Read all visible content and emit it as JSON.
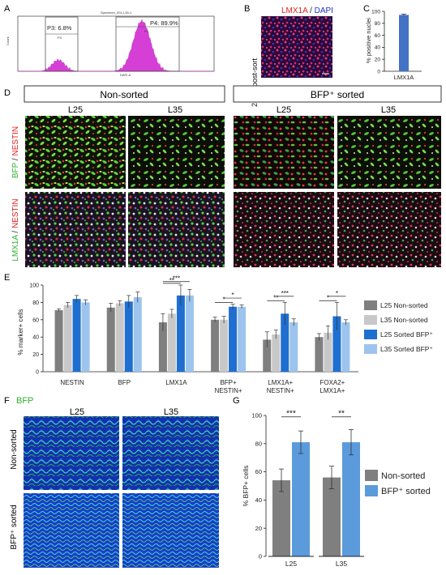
{
  "panels": {
    "A": "A",
    "B": "B",
    "C": "C",
    "D": "D",
    "E": "E",
    "F": "F",
    "G": "G"
  },
  "panel_a": {
    "title": "Specimen_001-L35-1",
    "gate_p3": "P3: 6.8%",
    "gate_p3_short": "P3",
    "gate_p4": "P4: 89.9%",
    "gate_p4_short": "P4",
    "xlabel": "DAPI-A",
    "ylabel": "Count",
    "hist_color": "#d63fd6"
  },
  "panel_b": {
    "title_a": "LMX1A",
    "title_sep": " / ",
    "title_b": "DAPI",
    "side_label": "24hrs post-sort"
  },
  "panel_d": {
    "group_left": "Non-sorted",
    "group_right": "BFP⁺ sorted",
    "col_labels": [
      "L25",
      "L35",
      "L25",
      "L35"
    ],
    "row1_a": "BFP",
    "row1_sep": " / ",
    "row1_b": "NESTIN",
    "row2_a": "LMX1A",
    "row2_sep": " / ",
    "row2_b": "NESTIN"
  },
  "panel_f": {
    "title": "BFP",
    "col_labels": [
      "L25",
      "L35"
    ],
    "row_labels": [
      "Non-sorted",
      "BFP⁺ sorted"
    ]
  },
  "colors": {
    "L25_non": "#7f7f7f",
    "L35_non": "#c8c8c8",
    "L25_sorted": "#1f6fd0",
    "L35_sorted": "#9cc4ee",
    "g_non": "#7f7f7f",
    "g_sorted": "#5b9bdc"
  },
  "chart_data": [
    {
      "id": "C",
      "type": "bar",
      "categories": [
        "LMX1A"
      ],
      "values": [
        94
      ],
      "errors": [
        1.5
      ],
      "ylabel": "% positive nuclei",
      "ylim": [
        0,
        100
      ],
      "yticks": [
        0,
        20,
        40,
        60,
        80,
        100
      ],
      "color": "#4472c4"
    },
    {
      "id": "E",
      "type": "bar",
      "categories": [
        "NESTIN",
        "BFP",
        "LMX1A",
        "BFP+ NESTIN+",
        "LMX1A+ NESTIN+",
        "FOXA2+ LMX1A+"
      ],
      "category_lines": [
        [
          "NESTIN"
        ],
        [
          "BFP"
        ],
        [
          "LMX1A"
        ],
        [
          "BFP+",
          "NESTIN+"
        ],
        [
          "LMX1A+",
          "NESTIN+"
        ],
        [
          "FOXA2+",
          "LMX1A+"
        ]
      ],
      "ylabel": "% marker+ cells",
      "ylim": [
        0,
        100
      ],
      "yticks": [
        0,
        20,
        40,
        60,
        80,
        100
      ],
      "legend_position": "right",
      "series": [
        {
          "name": "L25 Non-sorted",
          "values": [
            71,
            74,
            57,
            60,
            37,
            40
          ],
          "errors": [
            1.5,
            5,
            10,
            3,
            9,
            4
          ]
        },
        {
          "name": "L35 Non-sorted",
          "values": [
            77,
            79,
            67,
            60,
            43,
            45
          ],
          "errors": [
            3,
            3,
            5,
            4,
            5,
            8
          ]
        },
        {
          "name": "L25 Sorted BFP⁺",
          "values": [
            84,
            81,
            88,
            75,
            67,
            64
          ],
          "errors": [
            4,
            7,
            12,
            3,
            13,
            16
          ]
        },
        {
          "name": "L35 Sorted BFP⁺",
          "values": [
            80,
            86,
            88,
            75,
            57,
            57
          ],
          "errors": [
            3,
            6,
            7,
            2,
            4,
            3
          ]
        }
      ],
      "significance": [
        {
          "category": 2,
          "from": 0,
          "to": 2,
          "label": "**"
        },
        {
          "category": 2,
          "from": 0,
          "to": 3,
          "label": "***"
        },
        {
          "category": 3,
          "from": 0,
          "to": 2,
          "label": "*"
        },
        {
          "category": 3,
          "from": 1,
          "to": 3,
          "label": "*"
        },
        {
          "category": 4,
          "from": 0,
          "to": 2,
          "label": "**"
        },
        {
          "category": 4,
          "from": 1,
          "to": 3,
          "label": "***"
        },
        {
          "category": 5,
          "from": 0,
          "to": 2,
          "label": "*"
        },
        {
          "category": 5,
          "from": 1,
          "to": 3,
          "label": "*"
        }
      ]
    },
    {
      "id": "G",
      "type": "bar",
      "categories": [
        "L25",
        "L35"
      ],
      "ylabel": "% BFP+ cells",
      "ylim": [
        0,
        100
      ],
      "yticks": [
        0,
        20,
        40,
        60,
        80,
        100
      ],
      "legend_position": "right",
      "series": [
        {
          "name": "Non-sorted",
          "values": [
            54,
            56
          ],
          "errors": [
            8,
            8
          ]
        },
        {
          "name": "BFP⁺ sorted",
          "values": [
            81,
            81
          ],
          "errors": [
            8,
            9
          ]
        }
      ],
      "significance": [
        {
          "category": 0,
          "label": "***"
        },
        {
          "category": 1,
          "label": "**"
        }
      ]
    }
  ]
}
